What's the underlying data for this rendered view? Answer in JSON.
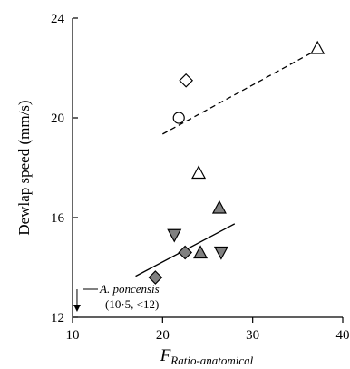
{
  "chart_data": {
    "type": "scatter",
    "ylabel": "Dewlap speed (mm/s)",
    "xlabel": {
      "main": "F",
      "subscript": "Ratio-anatomical"
    },
    "xlim": [
      10,
      40
    ],
    "ylim": [
      12,
      24
    ],
    "x_ticks": [
      "10",
      "20",
      "30",
      "40"
    ],
    "y_ticks": [
      "12",
      "16",
      "20",
      "24"
    ],
    "grid": false,
    "legend": "none",
    "points": [
      {
        "shape": "diamond",
        "fill": "open",
        "x": 22.6,
        "y": 21.5
      },
      {
        "shape": "circle",
        "fill": "open",
        "x": 21.8,
        "y": 20.0
      },
      {
        "shape": "triangle-up",
        "fill": "open",
        "x": 37.2,
        "y": 22.8
      },
      {
        "shape": "triangle-up",
        "fill": "open",
        "x": 24.0,
        "y": 17.8
      },
      {
        "shape": "triangle-up",
        "fill": "gray",
        "x": 26.3,
        "y": 16.4
      },
      {
        "shape": "triangle-down",
        "fill": "gray",
        "x": 21.3,
        "y": 15.3
      },
      {
        "shape": "triangle-up",
        "fill": "gray",
        "x": 24.2,
        "y": 14.6
      },
      {
        "shape": "diamond",
        "fill": "gray",
        "x": 22.5,
        "y": 14.6
      },
      {
        "shape": "triangle-down",
        "fill": "gray",
        "x": 26.5,
        "y": 14.6
      },
      {
        "shape": "diamond",
        "fill": "gray",
        "x": 19.2,
        "y": 13.6
      }
    ],
    "lines": [
      {
        "style": "dashed",
        "x": [
          20.0,
          37.0
        ],
        "y": [
          19.35,
          22.7
        ]
      },
      {
        "style": "solid",
        "x": [
          17.0,
          28.0
        ],
        "y": [
          13.65,
          15.75
        ]
      }
    ],
    "annotation": {
      "name": "A. poncensis",
      "values": "(10·5, <12)",
      "arrow_x": 10.5
    },
    "colors": {
      "gray_fill": "#808080",
      "open_fill": "#ffffff",
      "stroke": "#000000"
    }
  }
}
